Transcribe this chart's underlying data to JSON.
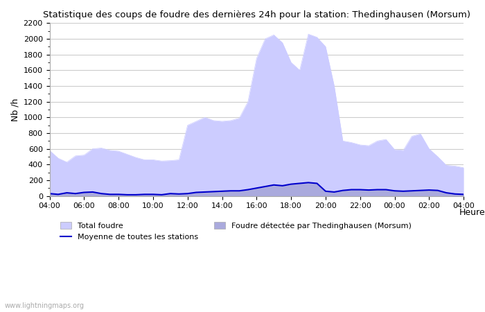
{
  "title": "Statistique des coups de foudre des dernières 24h pour la station: Thedinghausen (Morsum)",
  "ylabel": "Nb /h",
  "xlabel": "Heure",
  "watermark": "www.lightningmaps.org",
  "ylim": [
    0,
    2200
  ],
  "yticks": [
    0,
    200,
    400,
    600,
    800,
    1000,
    1200,
    1400,
    1600,
    1800,
    2000,
    2200
  ],
  "xtick_labels": [
    "04:00",
    "06:00",
    "08:00",
    "10:00",
    "12:00",
    "14:00",
    "16:00",
    "18:00",
    "20:00",
    "22:00",
    "00:00",
    "02:00",
    "04:00"
  ],
  "background_color": "#ffffff",
  "plot_bg_color": "#ffffff",
  "grid_color": "#cccccc",
  "total_foudre_color": "#ccccff",
  "total_foudre_edge": "#ccccff",
  "station_foudre_color": "#aaaadd",
  "mean_line_color": "#0000cc",
  "hours": [
    4,
    4.5,
    5,
    5.5,
    6,
    6.5,
    7,
    7.5,
    8,
    8.5,
    9,
    9.5,
    10,
    10.5,
    11,
    11.5,
    12,
    12.5,
    13,
    13.5,
    14,
    14.5,
    15,
    15.5,
    16,
    16.5,
    17,
    17.5,
    18,
    18.5,
    19,
    19.5,
    20,
    20.5,
    21,
    21.5,
    22,
    22.5,
    23,
    23.5,
    24,
    24.5,
    25,
    25.5,
    26,
    26.5,
    27,
    27.5,
    28
  ],
  "total_foudre": [
    580,
    480,
    430,
    510,
    520,
    600,
    610,
    580,
    570,
    530,
    490,
    460,
    460,
    445,
    450,
    460,
    900,
    950,
    1000,
    960,
    950,
    960,
    990,
    1200,
    1750,
    2000,
    2050,
    1950,
    1700,
    1600,
    2060,
    2020,
    1900,
    1400,
    700,
    680,
    650,
    640,
    700,
    720,
    590,
    580,
    760,
    790,
    600,
    500,
    390,
    380,
    360
  ],
  "station_foudre": [
    30,
    20,
    40,
    30,
    45,
    50,
    30,
    20,
    20,
    15,
    15,
    20,
    20,
    15,
    30,
    25,
    30,
    45,
    50,
    55,
    60,
    65,
    65,
    80,
    100,
    120,
    140,
    130,
    150,
    160,
    170,
    160,
    60,
    50,
    70,
    80,
    80,
    75,
    80,
    80,
    65,
    60,
    65,
    70,
    75,
    70,
    40,
    25,
    20
  ],
  "mean_line": [
    30,
    20,
    40,
    30,
    45,
    50,
    30,
    20,
    20,
    15,
    15,
    20,
    20,
    15,
    30,
    25,
    30,
    45,
    50,
    55,
    60,
    65,
    65,
    80,
    100,
    120,
    140,
    130,
    150,
    160,
    170,
    160,
    60,
    50,
    70,
    80,
    80,
    75,
    80,
    80,
    65,
    60,
    65,
    70,
    75,
    70,
    40,
    25,
    20
  ],
  "legend_total_label": "Total foudre",
  "legend_station_label": "Foudre détectée par Thedinghausen (Morsum)",
  "legend_mean_label": "Moyenne de toutes les stations"
}
